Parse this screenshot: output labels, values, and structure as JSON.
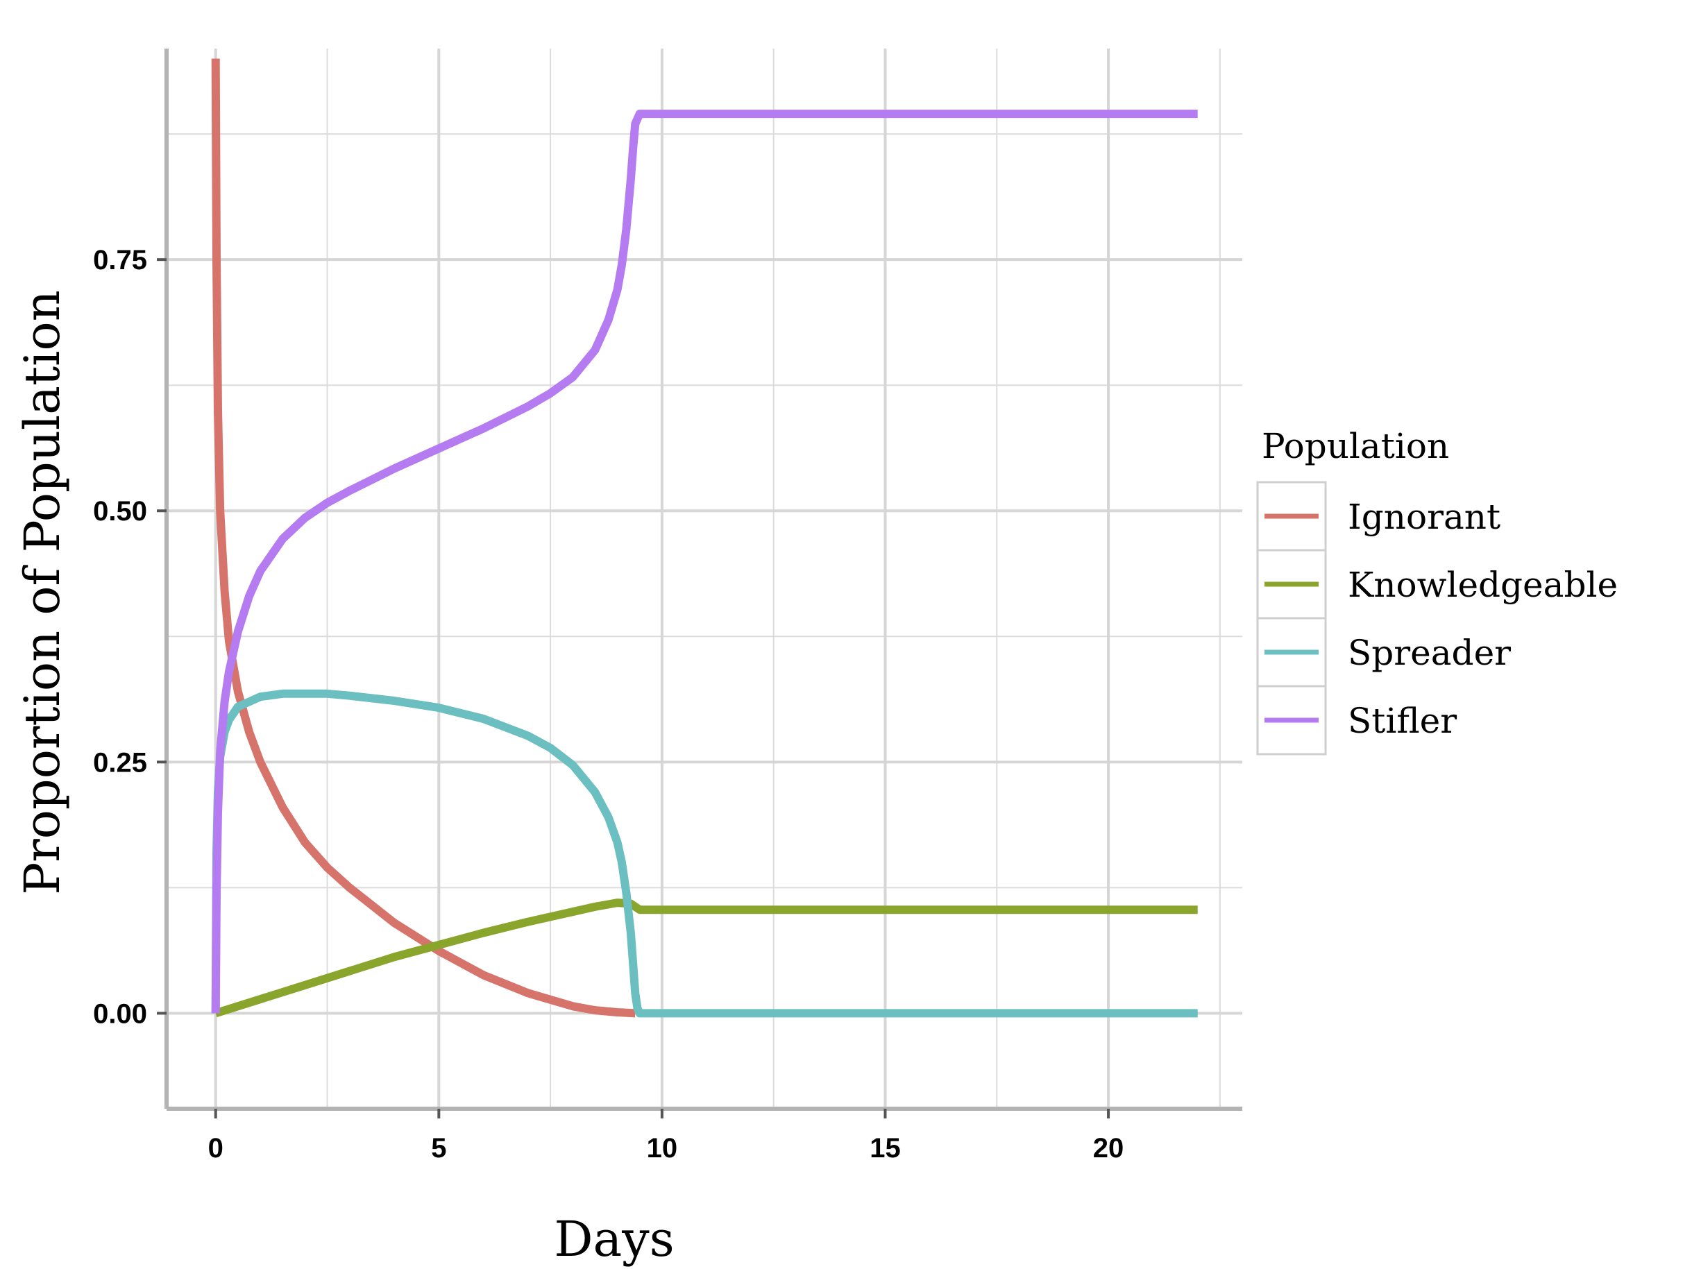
{
  "chart_data": {
    "type": "line",
    "xlabel": "Days",
    "ylabel": "Proportion of Population",
    "xlim": [
      -1.1,
      23.0
    ],
    "ylim": [
      -0.095,
      0.96
    ],
    "xticks": [
      0,
      5,
      10,
      15,
      20
    ],
    "xtick_labels": [
      "0",
      "5",
      "10",
      "15",
      "20"
    ],
    "yticks": [
      0.0,
      0.25,
      0.5,
      0.75
    ],
    "ytick_labels": [
      "0.00",
      "0.25",
      "0.50",
      "0.75"
    ],
    "grid": true,
    "legend": {
      "title": "Population",
      "position": "right"
    },
    "series": [
      {
        "name": "Ignorant",
        "color": "#D6736A",
        "x": [
          0,
          0.02,
          0.05,
          0.1,
          0.2,
          0.3,
          0.5,
          0.75,
          1,
          1.5,
          2,
          2.5,
          3,
          4,
          5,
          6,
          7,
          8,
          8.5,
          9,
          9.4
        ],
        "y": [
          0.95,
          0.75,
          0.6,
          0.5,
          0.42,
          0.37,
          0.32,
          0.28,
          0.25,
          0.205,
          0.17,
          0.145,
          0.125,
          0.09,
          0.062,
          0.038,
          0.02,
          0.007,
          0.003,
          0.001,
          0.0
        ]
      },
      {
        "name": "Knowledgeable",
        "color": "#89A52C",
        "x": [
          0,
          1,
          2,
          3,
          4,
          5,
          6,
          7,
          8,
          8.5,
          9,
          9.3,
          9.5,
          10,
          15,
          20,
          22
        ],
        "y": [
          0.0,
          0.014,
          0.028,
          0.042,
          0.056,
          0.068,
          0.08,
          0.091,
          0.101,
          0.106,
          0.11,
          0.109,
          0.103,
          0.103,
          0.103,
          0.103,
          0.103
        ]
      },
      {
        "name": "Spreader",
        "color": "#6CBFC0",
        "x": [
          0,
          0.02,
          0.05,
          0.1,
          0.2,
          0.3,
          0.5,
          1,
          1.5,
          2,
          2.5,
          3,
          4,
          5,
          6,
          7,
          7.5,
          8,
          8.5,
          8.8,
          9,
          9.1,
          9.2,
          9.3,
          9.35,
          9.4,
          9.45,
          9.5,
          10,
          15,
          20,
          22
        ],
        "y": [
          0.0,
          0.16,
          0.22,
          0.255,
          0.28,
          0.292,
          0.305,
          0.315,
          0.318,
          0.318,
          0.318,
          0.316,
          0.311,
          0.304,
          0.293,
          0.276,
          0.264,
          0.247,
          0.22,
          0.195,
          0.17,
          0.15,
          0.12,
          0.08,
          0.05,
          0.02,
          0.005,
          0.0,
          0.0,
          0.0,
          0.0,
          0.0
        ]
      },
      {
        "name": "Stifler",
        "color": "#B57BF0",
        "x": [
          0,
          0.02,
          0.05,
          0.1,
          0.2,
          0.3,
          0.5,
          0.75,
          1,
          1.5,
          2,
          2.5,
          3,
          4,
          5,
          6,
          7,
          7.5,
          8,
          8.5,
          8.8,
          9,
          9.1,
          9.2,
          9.3,
          9.35,
          9.4,
          9.5,
          10,
          15,
          20,
          22
        ],
        "y": [
          0.0,
          0.12,
          0.2,
          0.26,
          0.31,
          0.34,
          0.38,
          0.415,
          0.44,
          0.472,
          0.493,
          0.508,
          0.52,
          0.542,
          0.562,
          0.582,
          0.604,
          0.617,
          0.633,
          0.66,
          0.69,
          0.72,
          0.745,
          0.78,
          0.83,
          0.86,
          0.885,
          0.895,
          0.895,
          0.895,
          0.895,
          0.895
        ]
      }
    ]
  }
}
